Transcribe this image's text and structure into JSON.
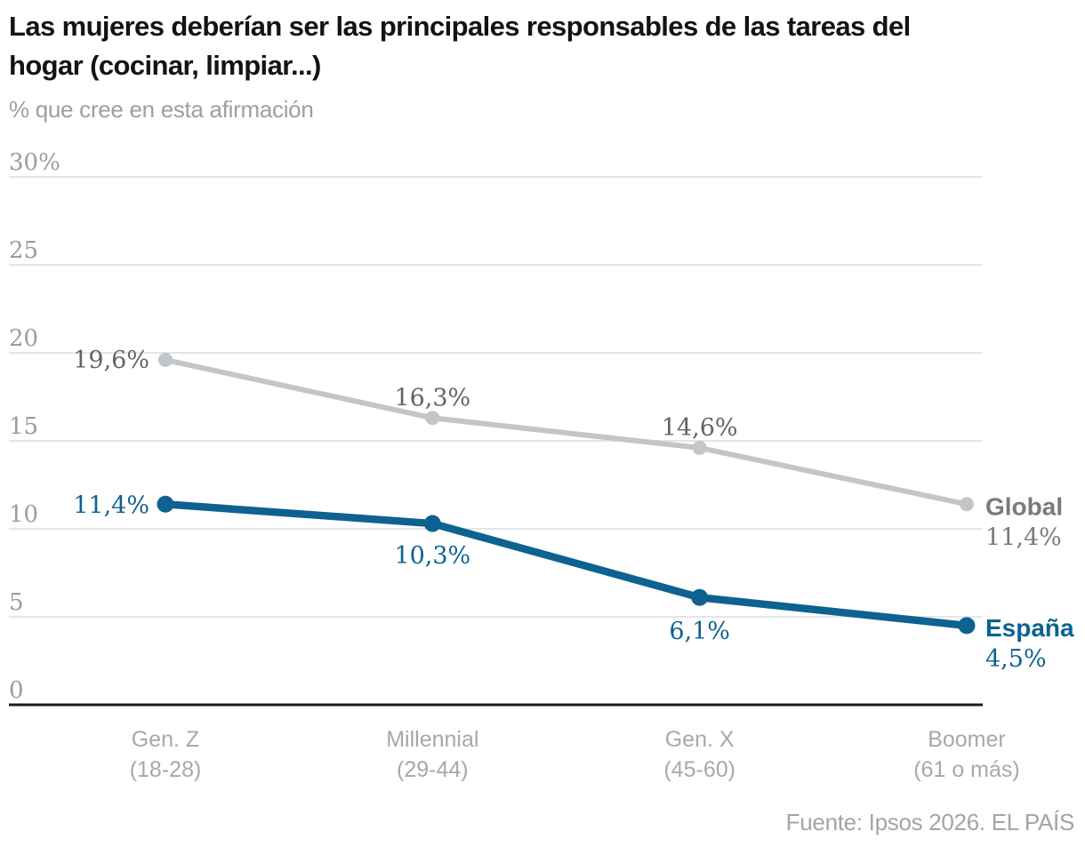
{
  "chart_data": {
    "type": "line",
    "title": "Las mujeres deberían ser las principales responsables de las tareas del\nhogar (cocinar, limpiar...)",
    "subtitle": "% que cree en esta afirmación",
    "source": "Fuente: Ipsos 2026. EL PAÍS",
    "categories": [
      {
        "label": "Gen. Z",
        "sublabel": "(18-28)"
      },
      {
        "label": "Millennial",
        "sublabel": "(29-44)"
      },
      {
        "label": "Gen. X",
        "sublabel": "(45-60)"
      },
      {
        "label": "Boomer",
        "sublabel": "(61 o más)"
      }
    ],
    "y_axis": {
      "min": 0,
      "max": 30,
      "ticks": [
        {
          "value": 30,
          "label": "30%"
        },
        {
          "value": 25,
          "label": "25"
        },
        {
          "value": 20,
          "label": "20"
        },
        {
          "value": 15,
          "label": "15"
        },
        {
          "value": 10,
          "label": "10"
        },
        {
          "value": 5,
          "label": "5"
        },
        {
          "value": 0,
          "label": "0"
        }
      ],
      "grid": true,
      "grid_color": "#e4e5e6",
      "axis_color": "#1a1a1a",
      "tick_color": "#999da0",
      "category_color": "#a6a9ab"
    },
    "legend_position": "right-end-labels",
    "series": [
      {
        "name": "Global",
        "values": [
          19.6,
          16.3,
          14.6,
          11.4
        ],
        "value_labels": [
          "19,6%",
          "16,3%",
          "14,6%",
          "11,4%"
        ],
        "line_color": "#c3c6c8",
        "value_label_color": "#5f6468",
        "end_name_color": "#777b7f",
        "end_value_color": "#777b7f",
        "end_label": {
          "name": "Global",
          "value": "11,4%"
        }
      },
      {
        "name": "España",
        "values": [
          11.4,
          10.3,
          6.1,
          4.5
        ],
        "value_labels": [
          "11,4%",
          "10,3%",
          "6,1%",
          "4,5%"
        ],
        "line_color": "#0d6290",
        "value_label_color": "#0d6290",
        "end_name_color": "#0d6290",
        "end_value_color": "#0d6290",
        "end_label": {
          "name": "España",
          "value": "4,5%"
        }
      }
    ]
  }
}
